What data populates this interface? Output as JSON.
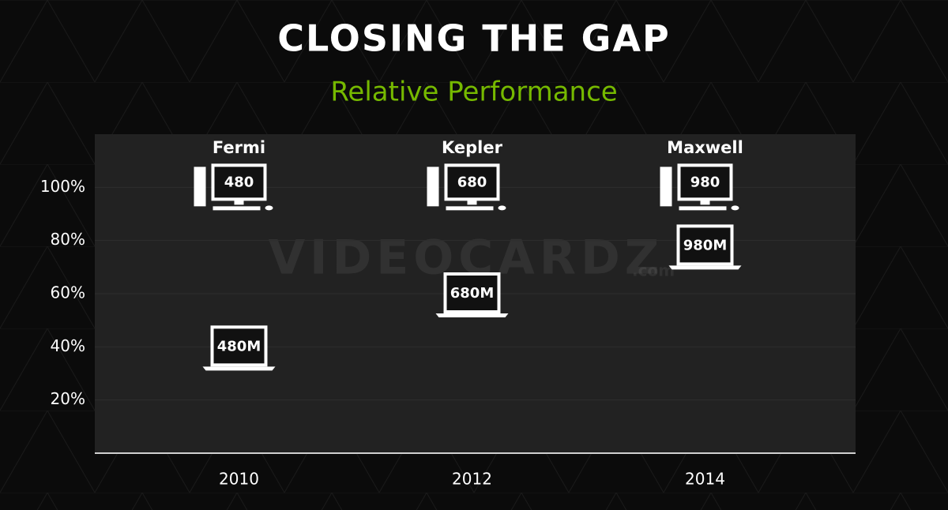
{
  "chart_data": {
    "type": "pictogram",
    "title": "CLOSING THE GAP",
    "subtitle": "Relative Performance",
    "categories": [
      "2010",
      "2012",
      "2014"
    ],
    "groups": [
      "Fermi",
      "Kepler",
      "Maxwell"
    ],
    "series": [
      {
        "marker": "desktop",
        "labels": [
          "480",
          "680",
          "980"
        ],
        "values": [
          100,
          100,
          100
        ],
        "color": "#ffffff"
      },
      {
        "marker": "laptop",
        "labels": [
          "480M",
          "680M",
          "980M"
        ],
        "values": [
          40,
          60,
          78
        ],
        "color": "#ffffff"
      }
    ],
    "ylim": [
      0,
      120
    ],
    "yticks": [
      {
        "value": 20,
        "label": "20%"
      },
      {
        "value": 40,
        "label": "40%"
      },
      {
        "value": 60,
        "label": "60%"
      },
      {
        "value": 80,
        "label": "80%"
      },
      {
        "value": 100,
        "label": "100%"
      }
    ],
    "grid": true,
    "accent_color": "#76b900",
    "watermark": "VIDEOCARDZ",
    "watermark_suffix": ".com"
  }
}
